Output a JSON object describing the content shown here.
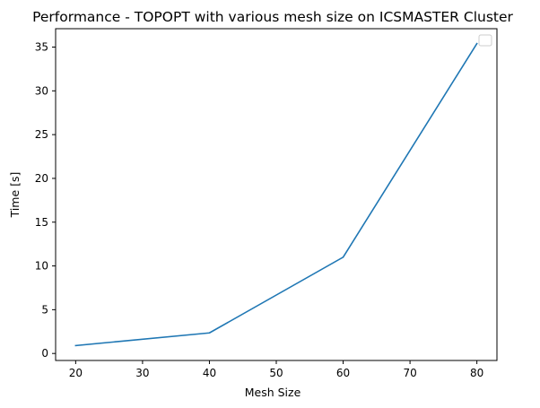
{
  "chart_data": {
    "type": "line",
    "title": "Performance - TOPOPT with various mesh size on ICSMASTER Cluster",
    "xlabel": "Mesh Size",
    "ylabel": "Time [s]",
    "x": [
      20,
      40,
      60,
      80
    ],
    "series": [
      {
        "values": [
          0.9,
          2.35,
          11.0,
          35.4
        ],
        "color": "#1f77b4"
      }
    ],
    "xlim": [
      17,
      83
    ],
    "ylim": [
      -0.8,
      37.1
    ],
    "xticks": [
      20,
      30,
      40,
      50,
      60,
      70,
      80
    ],
    "yticks": [
      0,
      5,
      10,
      15,
      20,
      25,
      30,
      35
    ],
    "grid": false,
    "legend": {
      "placement": "top-right",
      "entries": []
    }
  }
}
